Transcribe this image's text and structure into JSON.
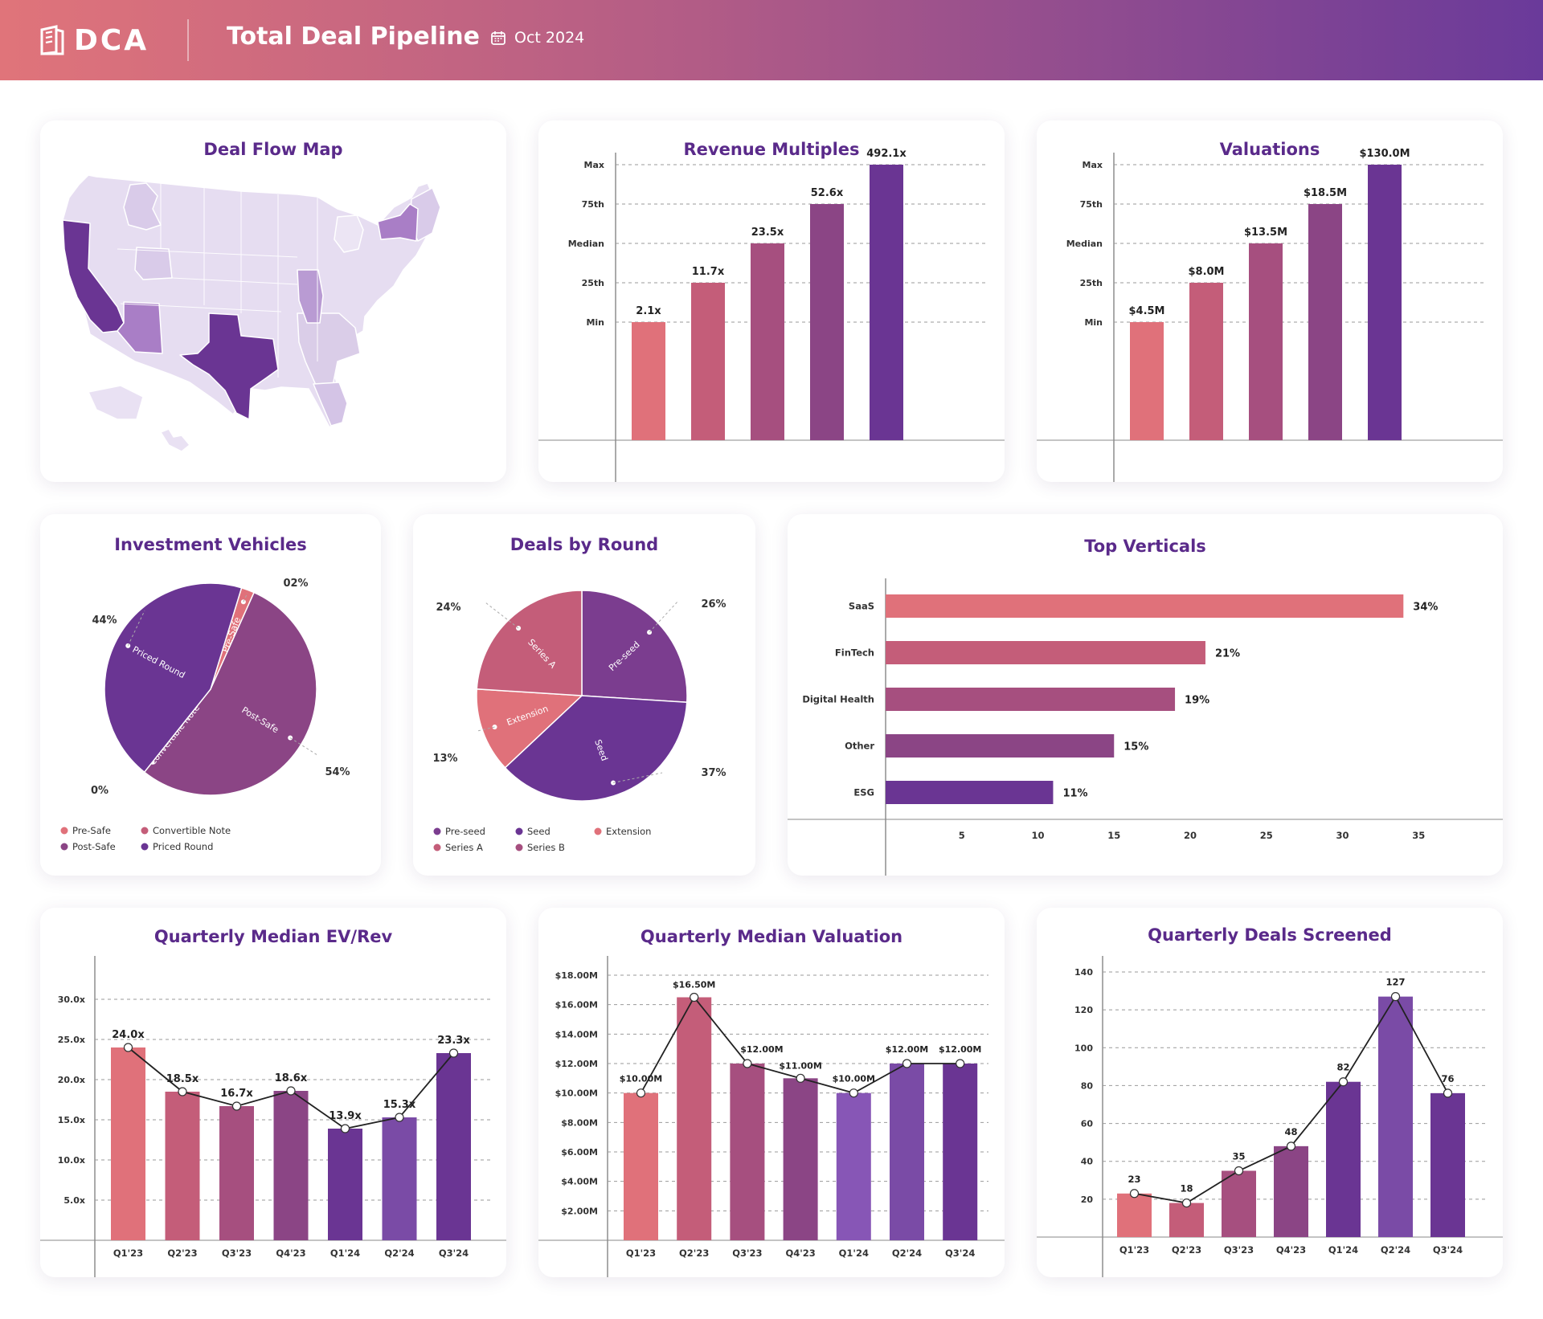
{
  "header": {
    "brand": "DCA",
    "title": "Total Deal Pipeline",
    "date": "Oct 2024"
  },
  "colors": {
    "c1": "#e0717a",
    "c2": "#c45d79",
    "c3": "#a64f7f",
    "c4": "#8b4585",
    "c5": "#6a3593",
    "c6": "#7a4ba6",
    "c7": "#8756b6",
    "light": "#e4dbef",
    "mid": "#c4abdb",
    "dark": "#6a3593"
  },
  "map": {
    "title": "Deal Flow Map",
    "highlighted_states": [
      {
        "state": "CA",
        "shade": "dark"
      },
      {
        "state": "TX",
        "shade": "dark"
      },
      {
        "state": "AZ",
        "shade": "mid"
      },
      {
        "state": "NY",
        "shade": "mid"
      },
      {
        "state": "IL",
        "shade": "mid"
      }
    ]
  },
  "revenue": {
    "title": "Revenue Multiples",
    "chart_data": {
      "type": "bar",
      "categories": [
        "Min",
        "25th",
        "Median",
        "75th",
        "Max"
      ],
      "values": [
        2.1,
        11.7,
        23.5,
        52.6,
        492.1
      ],
      "labels": [
        "2.1x",
        "11.7x",
        "23.5x",
        "52.6x",
        "492.1x"
      ]
    }
  },
  "valuations": {
    "title": "Valuations",
    "chart_data": {
      "type": "bar",
      "categories": [
        "Min",
        "25th",
        "Median",
        "75th",
        "Max"
      ],
      "values": [
        4.5,
        8.0,
        13.5,
        18.5,
        130.0
      ],
      "labels": [
        "$4.5M",
        "$8.0M",
        "$13.5M",
        "$18.5M",
        "$130.0M"
      ]
    }
  },
  "vehicles": {
    "title": "Investment Vehicles",
    "chart_data": {
      "type": "pie",
      "slices": [
        {
          "name": "Pre-Safe",
          "value": 2,
          "pct": "02%",
          "color": "#e0717a"
        },
        {
          "name": "Post-Safe",
          "value": 54,
          "pct": "54%",
          "color": "#8b4585"
        },
        {
          "name": "Convertible Note",
          "value": 0,
          "pct": "0%",
          "color": "#c45d79"
        },
        {
          "name": "Priced Round",
          "value": 44,
          "pct": "44%",
          "color": "#6a3593"
        }
      ]
    },
    "legend": [
      "Pre-Safe",
      "Convertible Note",
      "Post-Safe",
      "Priced Round"
    ]
  },
  "rounds": {
    "title": "Deals by Round",
    "chart_data": {
      "type": "pie",
      "slices": [
        {
          "name": "Pre-seed",
          "value": 26,
          "pct": "26%",
          "color": "#7b3d8f"
        },
        {
          "name": "Seed",
          "value": 37,
          "pct": "37%",
          "color": "#6a3593"
        },
        {
          "name": "Extension",
          "value": 13,
          "pct": "13%",
          "color": "#e0717a"
        },
        {
          "name": "Series A",
          "value": 24,
          "pct": "24%",
          "color": "#c45d79"
        }
      ]
    },
    "legend": [
      "Pre-seed",
      "Seed",
      "Extension",
      "Series A",
      "Series B"
    ]
  },
  "verticals": {
    "title": "Top Verticals",
    "chart_data": {
      "type": "bar",
      "orientation": "horizontal",
      "categories": [
        "SaaS",
        "FinTech",
        "Digital Health",
        "Other",
        "ESG"
      ],
      "values": [
        34,
        21,
        19,
        15,
        11
      ],
      "labels": [
        "34%",
        "21%",
        "19%",
        "15%",
        "11%"
      ],
      "xticks": [
        5,
        10,
        15,
        20,
        25,
        30,
        35
      ]
    }
  },
  "evrev": {
    "title": "Quarterly Median EV/Rev",
    "chart_data": {
      "type": "bar",
      "categories": [
        "Q1'23",
        "Q2'23",
        "Q3'23",
        "Q4'23",
        "Q1'24",
        "Q2'24",
        "Q3'24"
      ],
      "values": [
        24.0,
        18.5,
        16.7,
        18.6,
        13.9,
        15.3,
        23.3
      ],
      "labels": [
        "24.0x",
        "18.5x",
        "16.7x",
        "18.6x",
        "13.9x",
        "15.3x",
        "23.3x"
      ],
      "yticks": [
        "5.0x",
        "10.0x",
        "15.0x",
        "20.0x",
        "25.0x",
        "30.0x"
      ]
    }
  },
  "medval": {
    "title": "Quarterly Median Valuation",
    "chart_data": {
      "type": "bar",
      "categories": [
        "Q1'23",
        "Q2'23",
        "Q3'23",
        "Q4'23",
        "Q1'24",
        "Q2'24",
        "Q3'24"
      ],
      "values": [
        10.0,
        16.5,
        12.0,
        11.0,
        10.0,
        12.0,
        12.0
      ],
      "labels": [
        "$10.00M",
        "$16.50M",
        "$12.00M",
        "$11.00M",
        "$10.00M",
        "$12.00M",
        "$12.00M"
      ],
      "yticks": [
        "$2.00M",
        "$4.00M",
        "$6.00M",
        "$8.00M",
        "$10.00M",
        "$12.00M",
        "$14.00M",
        "$16.00M",
        "$18.00M"
      ]
    }
  },
  "screened": {
    "title": "Quarterly Deals Screened",
    "chart_data": {
      "type": "bar",
      "categories": [
        "Q1'23",
        "Q2'23",
        "Q3'23",
        "Q4'23",
        "Q1'24",
        "Q2'24",
        "Q3'24"
      ],
      "values": [
        23,
        18,
        35,
        48,
        82,
        127,
        76
      ],
      "labels": [
        "23",
        "18",
        "35",
        "48",
        "82",
        "127",
        "76"
      ],
      "yticks": [
        "20",
        "40",
        "60",
        "80",
        "100",
        "120",
        "140"
      ]
    }
  }
}
